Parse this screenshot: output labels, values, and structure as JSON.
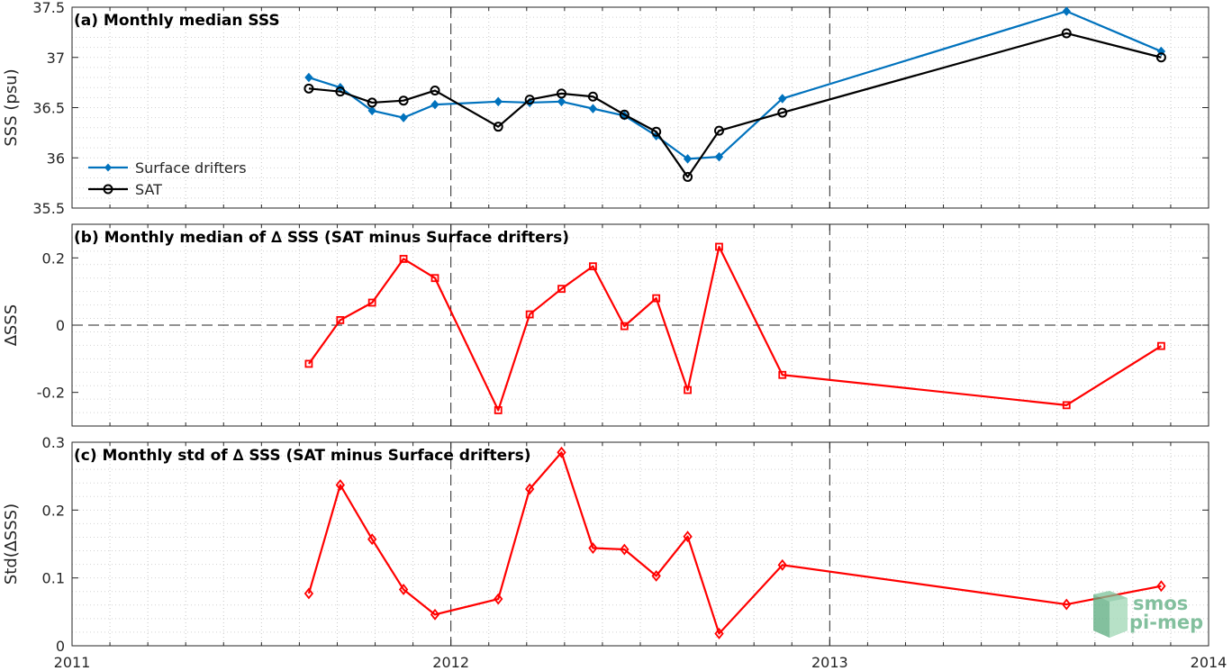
{
  "colors": {
    "drifters": "#0072BD",
    "sat": "#000000",
    "delta": "#FF0000",
    "logo": "#5aab7e"
  },
  "logo": {
    "line1": "smos",
    "line2": "pi-mep"
  },
  "chart_data": [
    {
      "type": "line",
      "title": "(a) Monthly median SSS",
      "ylabel": "SSS (psu)",
      "xlim": [
        2011,
        2014
      ],
      "ylim": [
        35.5,
        37.5
      ],
      "yticks": [
        35.5,
        36,
        36.5,
        37,
        37.5
      ],
      "ytick_labels": [
        "35.5",
        "36",
        "36.5",
        "37",
        "37.5"
      ],
      "xticks_major": [
        2011,
        2012,
        2013,
        2014
      ],
      "dashed_vlines": [
        2012,
        2013
      ],
      "grid": "dotted",
      "legend": "left",
      "series": [
        {
          "name": "Surface drifters",
          "color": "#0072BD",
          "marker": "filled-diamond",
          "x": [
            2011.625,
            2011.708,
            2011.792,
            2011.875,
            2011.958,
            2012.125,
            2012.208,
            2012.292,
            2012.375,
            2012.458,
            2012.542,
            2012.625,
            2012.708,
            2012.875,
            2013.625,
            2013.875
          ],
          "y": [
            36.8,
            36.7,
            36.47,
            36.4,
            36.53,
            36.56,
            36.55,
            36.56,
            36.49,
            36.42,
            36.22,
            35.99,
            36.01,
            36.59,
            37.46,
            37.06
          ]
        },
        {
          "name": "SAT",
          "color": "#000000",
          "marker": "open-circle",
          "x": [
            2011.625,
            2011.708,
            2011.792,
            2011.875,
            2011.958,
            2012.125,
            2012.208,
            2012.292,
            2012.375,
            2012.458,
            2012.542,
            2012.625,
            2012.708,
            2012.875,
            2013.625,
            2013.875
          ],
          "y": [
            36.69,
            36.66,
            36.55,
            36.57,
            36.67,
            36.31,
            36.58,
            36.64,
            36.61,
            36.43,
            36.26,
            35.81,
            36.27,
            36.45,
            37.24,
            37.0
          ]
        }
      ],
      "x_tick_labels": []
    },
    {
      "type": "line",
      "title": "(b) Monthly median of ∆ SSS (SAT minus Surface drifters)",
      "ylabel": "∆SSS",
      "xlim": [
        2011,
        2014
      ],
      "ylim": [
        -0.3,
        0.3
      ],
      "yticks": [
        -0.2,
        0,
        0.2
      ],
      "ytick_labels": [
        "-0.2",
        "0",
        "0.2"
      ],
      "dashed_vlines": [
        2012,
        2013
      ],
      "dashed_hline": 0,
      "grid": "dotted",
      "series": [
        {
          "name": "",
          "color": "#FF0000",
          "marker": "open-square",
          "x": [
            2011.625,
            2011.708,
            2011.792,
            2011.875,
            2011.958,
            2012.125,
            2012.208,
            2012.292,
            2012.375,
            2012.458,
            2012.542,
            2012.625,
            2012.708,
            2012.875,
            2013.625,
            2013.875
          ],
          "y": [
            -0.115,
            0.015,
            0.067,
            0.197,
            0.14,
            -0.253,
            0.032,
            0.108,
            0.175,
            -0.003,
            0.08,
            -0.193,
            0.233,
            -0.148,
            -0.238,
            -0.062
          ]
        }
      ]
    },
    {
      "type": "line",
      "title": "(c) Monthly std of ∆ SSS (SAT minus Surface drifters)",
      "ylabel": "Std(∆SSS)",
      "xlim": [
        2011,
        2014
      ],
      "ylim": [
        0,
        0.3
      ],
      "yticks": [
        0,
        0.1,
        0.2,
        0.3
      ],
      "ytick_labels": [
        "0",
        "0.1",
        "0.2",
        "0.3"
      ],
      "xticks_major": [
        2011,
        2012,
        2013,
        2014
      ],
      "x_tick_labels": [
        "2011",
        "2012",
        "2013",
        "2014"
      ],
      "dashed_vlines": [
        2012,
        2013
      ],
      "grid": "dotted",
      "series": [
        {
          "name": "",
          "color": "#FF0000",
          "marker": "open-diamond",
          "x": [
            2011.625,
            2011.708,
            2011.792,
            2011.875,
            2011.958,
            2012.125,
            2012.208,
            2012.292,
            2012.375,
            2012.458,
            2012.542,
            2012.625,
            2012.708,
            2012.875,
            2013.625,
            2013.875
          ],
          "y": [
            0.077,
            0.237,
            0.157,
            0.083,
            0.046,
            0.069,
            0.231,
            0.285,
            0.144,
            0.142,
            0.103,
            0.161,
            0.018,
            0.119,
            0.061,
            0.088
          ]
        }
      ]
    }
  ]
}
